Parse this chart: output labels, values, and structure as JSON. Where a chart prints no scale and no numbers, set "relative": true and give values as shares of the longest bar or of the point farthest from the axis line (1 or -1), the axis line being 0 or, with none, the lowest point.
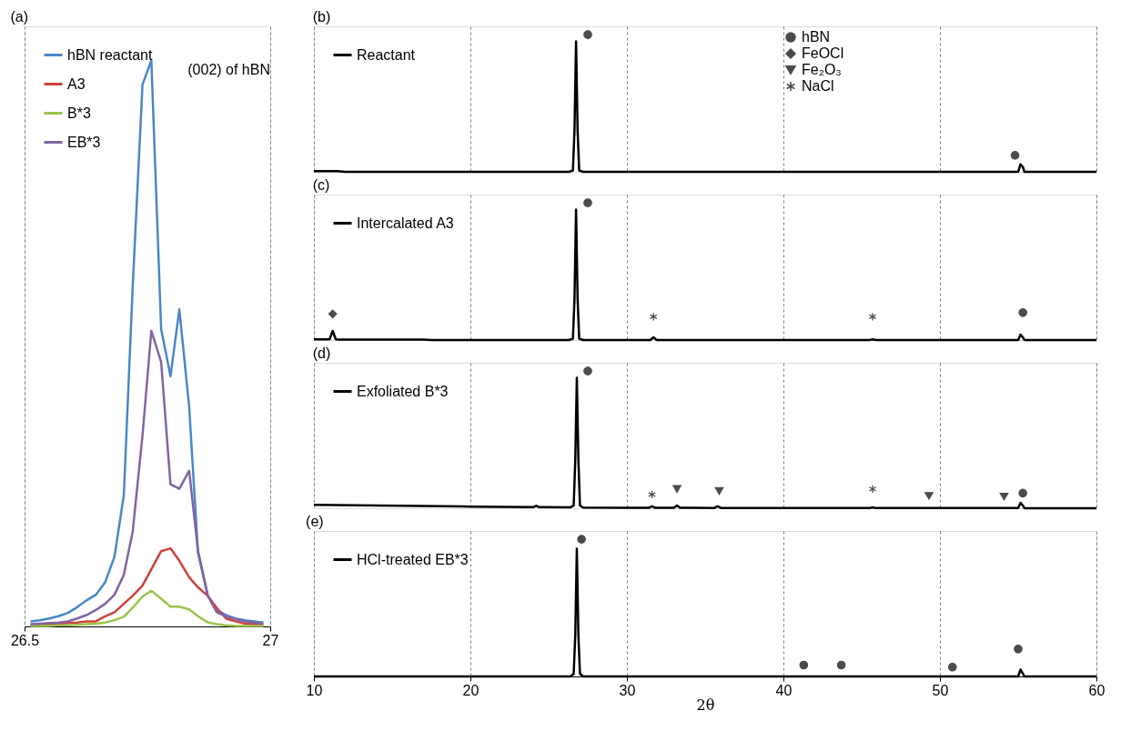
{
  "chart_data": [
    {
      "type": "line",
      "title": "(a)",
      "relative": true,
      "xlim": [
        26.5,
        27
      ],
      "xticks": [
        26.5,
        27
      ],
      "grid": "x",
      "legend": "top left",
      "tick_labels": "x",
      "annotations": [
        "(002) of hBN"
      ],
      "x": [
        26.512,
        26.531,
        26.55,
        26.569,
        26.588,
        26.607,
        26.626,
        26.645,
        26.664,
        26.683,
        26.702,
        26.72,
        26.74,
        26.758,
        26.778,
        26.797,
        26.815,
        26.835,
        26.853,
        26.873,
        26.891,
        26.91,
        26.929,
        26.948,
        26.967,
        26.986
      ],
      "series": [
        {
          "name": "hBN reactant",
          "color": "#4a86c8",
          "values": [
            0.009,
            0.011,
            0.014,
            0.018,
            0.024,
            0.034,
            0.046,
            0.056,
            0.078,
            0.123,
            0.232,
            0.598,
            0.957,
            1,
            0.525,
            0.442,
            0.56,
            0.388,
            0.13,
            0.054,
            0.029,
            0.02,
            0.014,
            0.011,
            0.009,
            0.007
          ]
        },
        {
          "name": "A3",
          "color": "#d0413a",
          "values": [
            0.002,
            0.003,
            0.004,
            0.004,
            0.006,
            0.007,
            0.009,
            0.009,
            0.018,
            0.025,
            0.04,
            0.054,
            0.072,
            0.101,
            0.133,
            0.138,
            0.116,
            0.087,
            0.069,
            0.054,
            0.033,
            0.014,
            0.009,
            0.005,
            0.004,
            0.002
          ]
        },
        {
          "name": "B*3",
          "color": "#9bc44c",
          "values": [
            0.001,
            0.001,
            0.001,
            0.002,
            0.002,
            0.003,
            0.004,
            0.005,
            0.007,
            0.011,
            0.017,
            0.033,
            0.053,
            0.063,
            0.049,
            0.035,
            0.035,
            0.03,
            0.018,
            0.007,
            0.004,
            0.002,
            0.001,
            0.001,
            0.001,
            0.001
          ]
        },
        {
          "name": "EB*3",
          "color": "#8064a2",
          "values": [
            0.004,
            0.005,
            0.006,
            0.007,
            0.009,
            0.014,
            0.02,
            0.029,
            0.04,
            0.056,
            0.091,
            0.167,
            0.337,
            0.522,
            0.467,
            0.251,
            0.243,
            0.275,
            0.134,
            0.054,
            0.025,
            0.018,
            0.013,
            0.009,
            0.007,
            0.005
          ]
        }
      ]
    },
    {
      "type": "line",
      "title": "(b)",
      "relative": true,
      "xlim": [
        10,
        60
      ],
      "xticks": [
        10,
        20,
        30,
        40,
        50,
        60
      ],
      "grid": "x",
      "legend": "top left",
      "tick_labels": false,
      "series": [
        {
          "name": "Reactant",
          "color": "#000000",
          "x": [
            10,
            11.5,
            12,
            26.3,
            26.55,
            26.65,
            26.75,
            26.85,
            26.95,
            27.2,
            55.0,
            55.15,
            55.3,
            55.4,
            60
          ],
          "values": [
            0.005,
            0.005,
            0,
            0,
            0.01,
            0.3,
            0.95,
            0.3,
            0.01,
            0,
            0,
            0.055,
            0.035,
            0,
            0
          ]
        },
        {
          "name": "hBN",
          "type": "scatter",
          "marker": "circle",
          "color": "#000000",
          "x": [
            27.5,
            54.8
          ],
          "values": [
            1,
            0.12
          ]
        },
        {
          "name": "FeOCl",
          "type": "scatter",
          "marker": "diamond",
          "color": "#000000"
        },
        {
          "name": "Fe₂O₃",
          "type": "scatter",
          "marker": "triangle",
          "color": "#000000"
        },
        {
          "name": "NaCl",
          "type": "scatter",
          "marker": "cross",
          "color": "#000000"
        }
      ]
    },
    {
      "type": "line",
      "title": "(c)",
      "relative": true,
      "xlim": [
        10,
        60
      ],
      "xticks": [
        10,
        20,
        30,
        40,
        50,
        60
      ],
      "grid": "x",
      "legend": "top left",
      "tick_labels": false,
      "series": [
        {
          "name": "Intercalated A3",
          "color": "#000000",
          "x": [
            10,
            11,
            11.2,
            11.4,
            11.6,
            17,
            17.5,
            26.3,
            26.55,
            26.65,
            26.75,
            26.85,
            26.95,
            27.2,
            31.5,
            31.7,
            31.9,
            45.5,
            45.7,
            45.9,
            55.0,
            55.15,
            55.3,
            55.4,
            60
          ],
          "values": [
            0.005,
            0.005,
            0.066,
            0.005,
            0.004,
            0.004,
            0,
            0,
            0.01,
            0.3,
            0.95,
            0.3,
            0.01,
            0,
            0,
            0.02,
            0,
            0,
            0.005,
            0,
            0,
            0.04,
            0.02,
            0,
            0
          ]
        },
        {
          "type": "scatter",
          "marker": "diamond",
          "color": "#000000",
          "x": [
            11.2
          ],
          "values": [
            0.19
          ]
        },
        {
          "type": "scatter",
          "marker": "cross",
          "color": "#000000",
          "x": [
            31.7,
            45.7
          ],
          "values": [
            0.17,
            0.17
          ]
        },
        {
          "type": "scatter",
          "marker": "circle",
          "color": "#000000",
          "x": [
            27.5,
            55.3
          ],
          "values": [
            1,
            0.2
          ]
        }
      ]
    },
    {
      "type": "line",
      "title": "(d)",
      "relative": true,
      "xlim": [
        10,
        60
      ],
      "xticks": [
        10,
        20,
        30,
        40,
        50,
        60
      ],
      "grid": "x",
      "legend": "top left",
      "tick_labels": false,
      "series": [
        {
          "name": "Exfoliated B*3",
          "color": "#000000",
          "x": [
            10,
            20,
            24.0,
            24.2,
            24.4,
            26.4,
            26.6,
            26.7,
            26.8,
            26.9,
            27.0,
            27.2,
            30,
            31.4,
            31.6,
            31.8,
            33.0,
            33.2,
            33.4,
            35.6,
            35.8,
            36.0,
            45.5,
            45.7,
            45.9,
            55.0,
            55.15,
            55.3,
            55.4,
            60
          ],
          "values": [
            0.025,
            0.012,
            0.008,
            0.018,
            0.008,
            0.007,
            0.02,
            0.35,
            0.95,
            0.35,
            0.02,
            0.005,
            0.004,
            0.003,
            0.015,
            0.003,
            0.003,
            0.02,
            0.003,
            0.002,
            0.015,
            0.002,
            0.001,
            0.007,
            0.001,
            0.001,
            0.04,
            0.02,
            0,
            0
          ]
        },
        {
          "type": "scatter",
          "marker": "cross",
          "color": "#000000",
          "x": [
            31.6,
            45.7
          ],
          "values": [
            0.1,
            0.14
          ]
        },
        {
          "type": "scatter",
          "marker": "triangle",
          "color": "#000000",
          "x": [
            33.2,
            35.9,
            49.3,
            54.1
          ],
          "values": [
            0.14,
            0.125,
            0.09,
            0.085
          ]
        },
        {
          "type": "scatter",
          "marker": "circle",
          "color": "#000000",
          "x": [
            27.5,
            55.3
          ],
          "values": [
            1,
            0.11
          ]
        }
      ]
    },
    {
      "type": "line",
      "title": "(e)",
      "xlabel": "2θ",
      "relative": true,
      "xlim": [
        10,
        60
      ],
      "xticks": [
        10,
        20,
        30,
        40,
        50,
        60
      ],
      "grid": "x",
      "legend": "top left",
      "tick_labels": "x",
      "series": [
        {
          "name": "HCl-treated EB*3",
          "color": "#000000",
          "x": [
            10,
            26.4,
            26.6,
            26.7,
            26.8,
            26.9,
            27.0,
            27.2,
            55.0,
            55.15,
            55.3,
            55.4,
            60
          ],
          "values": [
            0,
            0,
            0.02,
            0.3,
            0.93,
            0.3,
            0.02,
            0,
            0,
            0.05,
            0.02,
            0,
            0
          ]
        },
        {
          "type": "scatter",
          "marker": "circle",
          "color": "#000000",
          "x": [
            27.1,
            41.3,
            43.7,
            50.8,
            55.0
          ],
          "values": [
            1,
            0.083,
            0.083,
            0.068,
            0.2
          ]
        }
      ]
    }
  ]
}
